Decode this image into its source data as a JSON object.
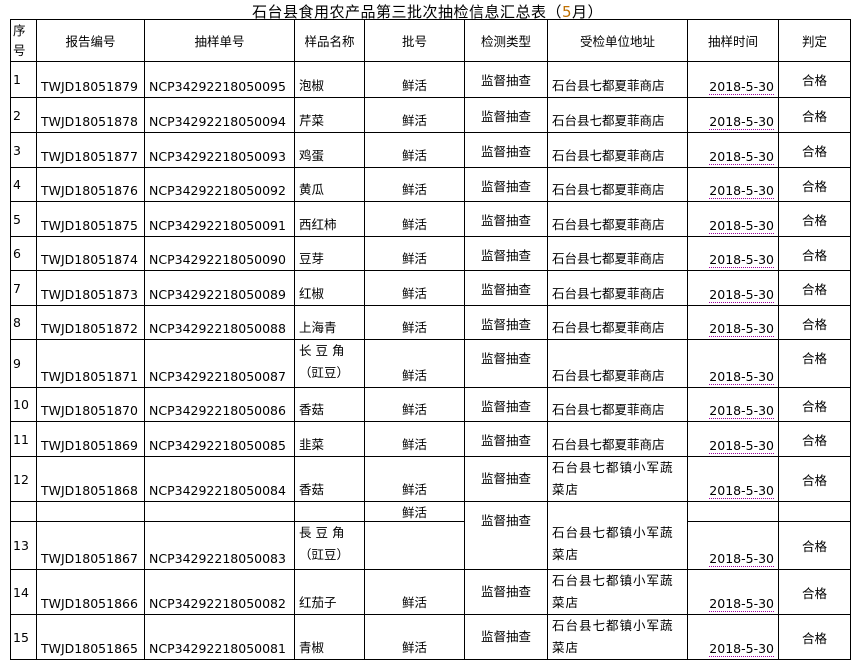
{
  "title": "石台县食用农产品第三批次抽检信息汇总表（",
  "title_month": "5",
  "title_end": "月）",
  "headers": [
    "序号",
    "报告编号",
    "抽样单号",
    "样品名称",
    "批号",
    "检测类型",
    "受检单位地址",
    "抽样时间",
    "判定"
  ],
  "rows": [
    {
      "seq": "1",
      "report": "TWJD18051879",
      "sample": "NCP34292218050095",
      "name": "泡椒",
      "batch": "鲜活",
      "type": "监督抽查",
      "addr": "石台县七都夏菲商店",
      "date": "2018-5-30",
      "result": "合格"
    },
    {
      "seq": "2",
      "report": "TWJD18051878",
      "sample": "NCP34292218050094",
      "name": "芹菜",
      "batch": "鲜活",
      "type": "监督抽查",
      "addr": "石台县七都夏菲商店",
      "date": "2018-5-30",
      "result": "合格"
    },
    {
      "seq": "3",
      "report": "TWJD18051877",
      "sample": "NCP34292218050093",
      "name": "鸡蛋",
      "batch": "鲜活",
      "type": "监督抽查",
      "addr": "石台县七都夏菲商店",
      "date": "2018-5-30",
      "result": "合格"
    },
    {
      "seq": "4",
      "report": "TWJD18051876",
      "sample": "NCP34292218050092",
      "name": "黄瓜",
      "batch": "鲜活",
      "type": "监督抽查",
      "addr": "石台县七都夏菲商店",
      "date": "2018-5-30",
      "result": "合格"
    },
    {
      "seq": "5",
      "report": "TWJD18051875",
      "sample": "NCP34292218050091",
      "name": "西红柿",
      "batch": "鲜活",
      "type": "监督抽查",
      "addr": "石台县七都夏菲商店",
      "date": "2018-5-30",
      "result": "合格"
    },
    {
      "seq": "6",
      "report": "TWJD18051874",
      "sample": "NCP34292218050090",
      "name": "豆芽",
      "batch": "鲜活",
      "type": "监督抽查",
      "addr": "石台县七都夏菲商店",
      "date": "2018-5-30",
      "result": "合格"
    },
    {
      "seq": "7",
      "report": "TWJD18051873",
      "sample": "NCP34292218050089",
      "name": "红椒",
      "batch": "鲜活",
      "type": "监督抽查",
      "addr": "石台县七都夏菲商店",
      "date": "2018-5-30",
      "result": "合格"
    },
    {
      "seq": "8",
      "report": "TWJD18051872",
      "sample": "NCP34292218050088",
      "name": "上海青",
      "batch": "鲜活",
      "type": "监督抽查",
      "addr": "石台县七都夏菲商店",
      "date": "2018-5-30",
      "result": "合格"
    },
    {
      "seq": "9",
      "report": "TWJD18051871",
      "sample": "NCP34292218050087",
      "name": "长 豆 角（豇豆）",
      "batch": "鲜活",
      "type": "监督抽查",
      "addr": "石台县七都夏菲商店",
      "date": "2018-5-30",
      "result": "合格"
    },
    {
      "seq": "10",
      "report": "TWJD18051870",
      "sample": "NCP34292218050086",
      "name": "香菇",
      "batch": "鲜活",
      "type": "监督抽查",
      "addr": "石台县七都夏菲商店",
      "date": "2018-5-30",
      "result": "合格"
    },
    {
      "seq": "11",
      "report": "TWJD18051869",
      "sample": "NCP34292218050085",
      "name": "韭菜",
      "batch": "鲜活",
      "type": "监督抽查",
      "addr": "石台县七都夏菲商店",
      "date": "2018-5-30",
      "result": "合格"
    },
    {
      "seq": "12",
      "report": "TWJD18051868",
      "sample": "NCP34292218050084",
      "name": "香菇",
      "batch": "鲜活",
      "type": "监督抽查",
      "addr": "石台县七都镇小军蔬菜店",
      "date": "2018-5-30",
      "result": "合格"
    },
    {
      "seq": "",
      "report": "",
      "sample": "",
      "name": "",
      "batch": "鲜活",
      "type": "监督抽查",
      "addr": "石台县七都镇小军蔬菜店",
      "date": "",
      "result": "",
      "blank": true
    },
    {
      "seq": "13",
      "report": "TWJD18051867",
      "sample": "NCP34292218050083",
      "name": "長 豆 角（豇豆）",
      "batch": "",
      "type": "",
      "addr": "",
      "date": "2018-5-30",
      "result": "合格",
      "merged": true
    },
    {
      "seq": "14",
      "report": "TWJD18051866",
      "sample": "NCP34292218050082",
      "name": "红茄子",
      "batch": "鲜活",
      "type": "监督抽查",
      "addr": "石台县七都镇小军蔬菜店",
      "date": "2018-5-30",
      "result": "合格"
    },
    {
      "seq": "15",
      "report": "TWJD18051865",
      "sample": "NCP34292218050081",
      "name": "青椒",
      "batch": "鲜活",
      "type": "监督抽查",
      "addr": "石台县七都镇小军蔬菜店",
      "date": "2018-5-30",
      "result": "合格"
    }
  ]
}
